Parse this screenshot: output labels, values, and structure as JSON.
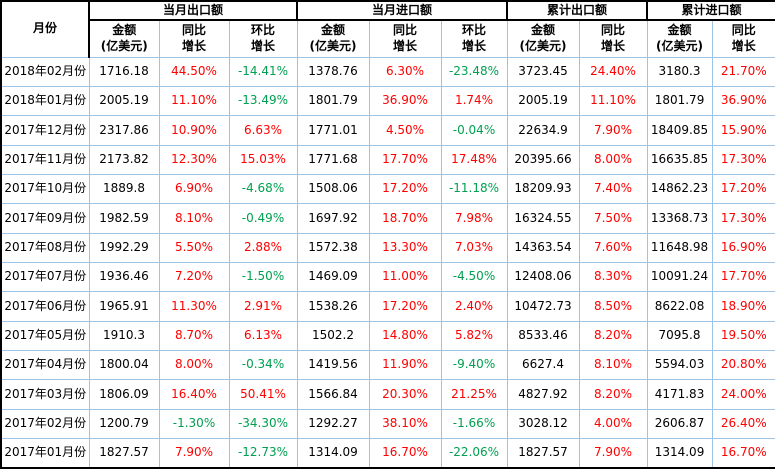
{
  "colors": {
    "positive": "#ff0000",
    "negative": "#00a050",
    "grid": "#9dc3e6",
    "outer": "#000000"
  },
  "chart_data": {
    "type": "table",
    "title": "",
    "column_groups": [
      {
        "label": "月份",
        "span": 1
      },
      {
        "label": "当月出口额",
        "span": 3
      },
      {
        "label": "当月进口额",
        "span": 3
      },
      {
        "label": "累计出口额",
        "span": 2
      },
      {
        "label": "累计进口额",
        "span": 2
      }
    ],
    "sub_headers": [
      "金额\n(亿美元)",
      "同比\n增长",
      "环比\n增长",
      "金额\n(亿美元)",
      "同比\n增长",
      "环比\n增长",
      "金额\n(亿美元)",
      "同比\n增长",
      "金额\n(亿美元)",
      "同比\n增长"
    ],
    "rows": [
      {
        "month": "2018年02月份",
        "values": [
          "1716.18",
          "44.50%",
          "-14.41%",
          "1378.76",
          "6.30%",
          "-23.48%",
          "3723.45",
          "24.40%",
          "3180.3",
          "21.70%"
        ]
      },
      {
        "month": "2018年01月份",
        "values": [
          "2005.19",
          "11.10%",
          "-13.49%",
          "1801.79",
          "36.90%",
          "1.74%",
          "2005.19",
          "11.10%",
          "1801.79",
          "36.90%"
        ]
      },
      {
        "month": "2017年12月份",
        "values": [
          "2317.86",
          "10.90%",
          "6.63%",
          "1771.01",
          "4.50%",
          "-0.04%",
          "22634.9",
          "7.90%",
          "18409.85",
          "15.90%"
        ]
      },
      {
        "month": "2017年11月份",
        "values": [
          "2173.82",
          "12.30%",
          "15.03%",
          "1771.68",
          "17.70%",
          "17.48%",
          "20395.66",
          "8.00%",
          "16635.85",
          "17.30%"
        ]
      },
      {
        "month": "2017年10月份",
        "values": [
          "1889.8",
          "6.90%",
          "-4.68%",
          "1508.06",
          "17.20%",
          "-11.18%",
          "18209.93",
          "7.40%",
          "14862.23",
          "17.20%"
        ]
      },
      {
        "month": "2017年09月份",
        "values": [
          "1982.59",
          "8.10%",
          "-0.49%",
          "1697.92",
          "18.70%",
          "7.98%",
          "16324.55",
          "7.50%",
          "13368.73",
          "17.30%"
        ]
      },
      {
        "month": "2017年08月份",
        "values": [
          "1992.29",
          "5.50%",
          "2.88%",
          "1572.38",
          "13.30%",
          "7.03%",
          "14363.54",
          "7.60%",
          "11648.98",
          "16.90%"
        ]
      },
      {
        "month": "2017年07月份",
        "values": [
          "1936.46",
          "7.20%",
          "-1.50%",
          "1469.09",
          "11.00%",
          "-4.50%",
          "12408.06",
          "8.30%",
          "10091.24",
          "17.70%"
        ]
      },
      {
        "month": "2017年06月份",
        "values": [
          "1965.91",
          "11.30%",
          "2.91%",
          "1538.26",
          "17.20%",
          "2.40%",
          "10472.73",
          "8.50%",
          "8622.08",
          "18.90%"
        ]
      },
      {
        "month": "2017年05月份",
        "values": [
          "1910.3",
          "8.70%",
          "6.13%",
          "1502.2",
          "14.80%",
          "5.82%",
          "8533.46",
          "8.20%",
          "7095.8",
          "19.50%"
        ]
      },
      {
        "month": "2017年04月份",
        "values": [
          "1800.04",
          "8.00%",
          "-0.34%",
          "1419.56",
          "11.90%",
          "-9.40%",
          "6627.4",
          "8.10%",
          "5594.03",
          "20.80%"
        ]
      },
      {
        "month": "2017年03月份",
        "values": [
          "1806.09",
          "16.40%",
          "50.41%",
          "1566.84",
          "20.30%",
          "21.25%",
          "4827.92",
          "8.20%",
          "4171.83",
          "24.00%"
        ]
      },
      {
        "month": "2017年02月份",
        "values": [
          "1200.79",
          "-1.30%",
          "-34.30%",
          "1292.27",
          "38.10%",
          "-1.66%",
          "3028.12",
          "4.00%",
          "2606.87",
          "26.40%"
        ]
      },
      {
        "month": "2017年01月份",
        "values": [
          "1827.57",
          "7.90%",
          "-12.73%",
          "1314.09",
          "16.70%",
          "-22.06%",
          "1827.57",
          "7.90%",
          "1314.09",
          "16.70%"
        ]
      }
    ]
  }
}
